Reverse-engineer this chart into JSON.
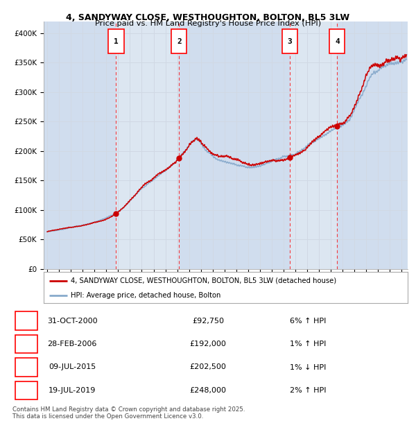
{
  "title_line1": "4, SANDYWAY CLOSE, WESTHOUGHTON, BOLTON, BL5 3LW",
  "title_line2": "Price paid vs. HM Land Registry's House Price Index (HPI)",
  "ylim": [
    0,
    420000
  ],
  "yticks": [
    0,
    50000,
    100000,
    150000,
    200000,
    250000,
    300000,
    350000,
    400000
  ],
  "ytick_labels": [
    "£0",
    "£50K",
    "£100K",
    "£150K",
    "£200K",
    "£250K",
    "£300K",
    "£350K",
    "£400K"
  ],
  "xlim_start": 1994.7,
  "xlim_end": 2025.5,
  "background_color": "#ffffff",
  "plot_bg_color": "#dce6f1",
  "grid_color": "#d0d8e4",
  "sale_color": "#cc0000",
  "hpi_color": "#88aacc",
  "shade_color": "#c8d8ec",
  "sale_markers": [
    {
      "year": 2000.83,
      "price": 92750,
      "label": "1"
    },
    {
      "year": 2006.16,
      "price": 192000,
      "label": "2"
    },
    {
      "year": 2015.52,
      "price": 202500,
      "label": "3"
    },
    {
      "year": 2019.54,
      "price": 248000,
      "label": "4"
    }
  ],
  "transactions": [
    {
      "num": "1",
      "date": "31-OCT-2000",
      "price": "£92,750",
      "hpi": "6% ↑ HPI"
    },
    {
      "num": "2",
      "date": "28-FEB-2006",
      "price": "£192,000",
      "hpi": "1% ↑ HPI"
    },
    {
      "num": "3",
      "date": "09-JUL-2015",
      "price": "£202,500",
      "hpi": "1% ↓ HPI"
    },
    {
      "num": "4",
      "date": "19-JUL-2019",
      "price": "£248,000",
      "hpi": "2% ↑ HPI"
    }
  ],
  "legend_line1": "4, SANDYWAY CLOSE, WESTHOUGHTON, BOLTON, BL5 3LW (detached house)",
  "legend_line2": "HPI: Average price, detached house, Bolton",
  "footer": "Contains HM Land Registry data © Crown copyright and database right 2025.\nThis data is licensed under the Open Government Licence v3.0."
}
